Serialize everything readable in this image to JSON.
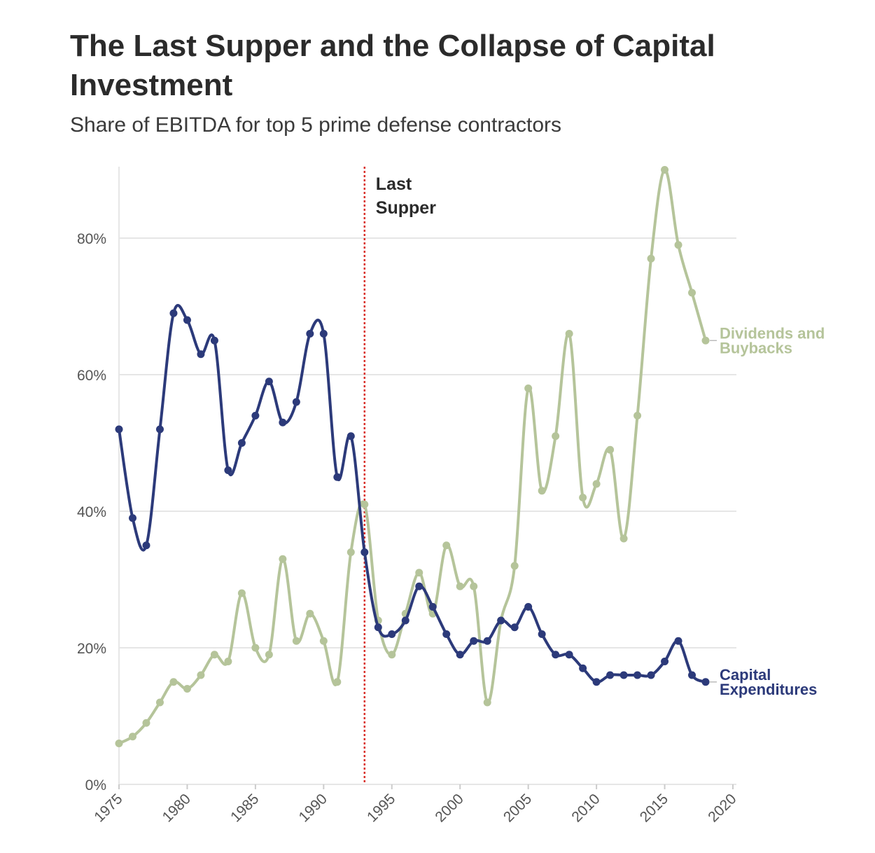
{
  "chart_data": {
    "type": "line",
    "title": "The Last Supper and the Collapse of Capital Investment",
    "subtitle": "Share of EBITDA for top 5 prime defense contractors",
    "xlabel": "",
    "ylabel": "",
    "xlim": [
      1975,
      2020
    ],
    "ylim": [
      0,
      90
    ],
    "x_ticks": [
      1975,
      1980,
      1985,
      1990,
      1995,
      2000,
      2005,
      2010,
      2015,
      2020
    ],
    "y_ticks": [
      0,
      20,
      40,
      60,
      80
    ],
    "y_tick_labels": [
      "0%",
      "20%",
      "40%",
      "60%",
      "80%"
    ],
    "grid": true,
    "annotation": {
      "label": "Last Supper",
      "x": 1993,
      "color": "#d9312b"
    },
    "x": [
      1975,
      1976,
      1977,
      1978,
      1979,
      1980,
      1981,
      1982,
      1983,
      1984,
      1985,
      1986,
      1987,
      1988,
      1989,
      1990,
      1991,
      1992,
      1993,
      1994,
      1995,
      1996,
      1997,
      1998,
      1999,
      2000,
      2001,
      2002,
      2003,
      2004,
      2005,
      2006,
      2007,
      2008,
      2009,
      2010,
      2011,
      2012,
      2013,
      2014,
      2015,
      2016,
      2017,
      2018
    ],
    "series": [
      {
        "name": "Capital Expenditures",
        "color": "#2c3a7a",
        "values": [
          52,
          39,
          35,
          52,
          69,
          68,
          63,
          65,
          46,
          50,
          54,
          59,
          53,
          56,
          66,
          66,
          45,
          51,
          34,
          23,
          22,
          24,
          29,
          26,
          22,
          19,
          21,
          21,
          24,
          23,
          26,
          22,
          19,
          19,
          17,
          15,
          16,
          16,
          16,
          16,
          18,
          21,
          16,
          15
        ]
      },
      {
        "name": "Dividends and Buybacks",
        "color": "#b5c49a",
        "values": [
          6,
          7,
          9,
          12,
          15,
          14,
          16,
          19,
          18,
          28,
          20,
          19,
          33,
          21,
          25,
          21,
          15,
          34,
          41,
          24,
          19,
          25,
          31,
          25,
          35,
          29,
          29,
          12,
          24,
          32,
          58,
          43,
          51,
          66,
          42,
          44,
          49,
          36,
          54,
          77,
          90,
          79,
          72,
          65
        ]
      }
    ]
  }
}
